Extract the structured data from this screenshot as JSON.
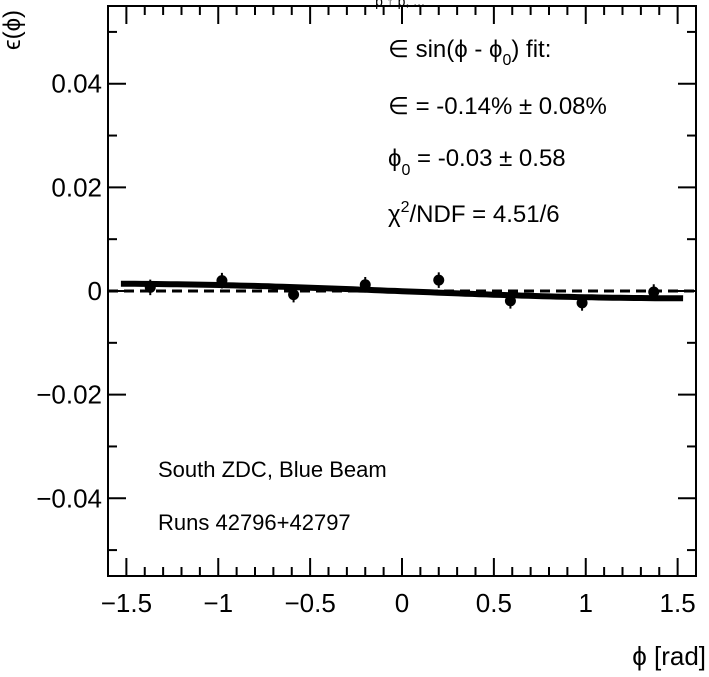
{
  "chart_data": {
    "type": "scatter",
    "title_fragment": "p ↑ p, ...",
    "xlabel": "ϕ [rad]",
    "ylabel": "ϵ(ϕ)",
    "xlim": [
      -1.6,
      1.6
    ],
    "ylim": [
      -0.055,
      0.055
    ],
    "x_ticks": [
      {
        "value": -1.5,
        "label": "−1.5"
      },
      {
        "value": -1.0,
        "label": "−1"
      },
      {
        "value": -0.5,
        "label": "−0.5"
      },
      {
        "value": 0.0,
        "label": "0"
      },
      {
        "value": 0.5,
        "label": "0.5"
      },
      {
        "value": 1.0,
        "label": "1"
      },
      {
        "value": 1.5,
        "label": "1.5"
      }
    ],
    "y_ticks": [
      {
        "value": -0.04,
        "label": "−0.04"
      },
      {
        "value": -0.02,
        "label": "−0.02"
      },
      {
        "value": 0.0,
        "label": "0"
      },
      {
        "value": 0.02,
        "label": "0.02"
      },
      {
        "value": 0.04,
        "label": "0.04"
      }
    ],
    "points": [
      {
        "x": -1.37,
        "y": 0.0007,
        "yerr": 0.0015
      },
      {
        "x": -0.98,
        "y": 0.002,
        "yerr": 0.0015
      },
      {
        "x": -0.59,
        "y": -0.0007,
        "yerr": 0.0015
      },
      {
        "x": -0.2,
        "y": 0.0012,
        "yerr": 0.0015
      },
      {
        "x": 0.2,
        "y": 0.0021,
        "yerr": 0.0015
      },
      {
        "x": 0.59,
        "y": -0.0019,
        "yerr": 0.0015
      },
      {
        "x": 0.98,
        "y": -0.0023,
        "yerr": 0.0015
      },
      {
        "x": 1.37,
        "y": -0.0002,
        "yerr": 0.0015
      }
    ],
    "fit": {
      "amplitude": -0.0014,
      "phi0": -0.03,
      "x_range": [
        -1.53,
        1.53
      ]
    },
    "zero_line": true,
    "annotations": {
      "fit_header": {
        "pre": "∈ sin(ϕ - ϕ",
        "sub": "0",
        "post": ") fit:"
      },
      "epsilon_line": "∈ = -0.14% ± 0.08%",
      "phi0_line": {
        "pre": "ϕ",
        "sub": "0",
        "post": " = -0.03 ± 0.58"
      },
      "chi2_line": {
        "pre": "χ",
        "sup": "2",
        "post": "/NDF = 4.51/6"
      },
      "detector": "South ZDC, Blue Beam",
      "runs": "Runs 42796+42797"
    }
  }
}
